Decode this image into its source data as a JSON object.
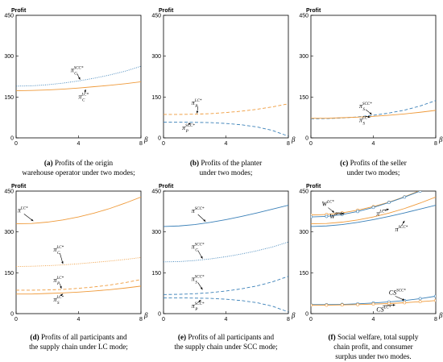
{
  "colors": {
    "blue": "#3a80b8",
    "orange": "#ef9a3a",
    "frame": "#000000"
  },
  "chart_data": [
    {
      "type": "line",
      "caption": {
        "tag": "(a)",
        "lines": [
          "Profits of the origin",
          "warehouse operator under two modes;"
        ]
      },
      "ylabel": "Profit",
      "xlabel": "β",
      "xlim": [
        0,
        8
      ],
      "ylim": [
        0,
        450
      ],
      "xticks": [
        "0",
        "4",
        "8"
      ],
      "yticks": [
        "0",
        "150",
        "300",
        "450"
      ],
      "series": [
        {
          "style": "dotted",
          "color": "blue",
          "x": [
            0,
            1,
            2,
            3,
            4,
            5,
            6,
            7,
            8
          ],
          "y": [
            190,
            191,
            195,
            201,
            209,
            219,
            231,
            245,
            263
          ]
        },
        {
          "style": "solid",
          "color": "orange",
          "x": [
            0,
            1,
            2,
            3,
            4,
            5,
            6,
            7,
            8
          ],
          "y": [
            173,
            174,
            176,
            179,
            183,
            188,
            193,
            199,
            206
          ]
        }
      ],
      "annotations": [
        {
          "base": "π",
          "sub": "C",
          "sup": "SCC*",
          "ax": 3.7,
          "ay": 242,
          "tx": 4.1,
          "ty": 214
        },
        {
          "base": "π",
          "sub": "C",
          "sup": "LC*",
          "ax": 4.2,
          "ay": 144,
          "tx": 4.45,
          "ty": 178
        }
      ]
    },
    {
      "type": "line",
      "caption": {
        "tag": "(b)",
        "lines": [
          "Profits of the planter",
          "under two modes;"
        ]
      },
      "ylabel": "Profit",
      "xlabel": "β",
      "xlim": [
        0,
        8
      ],
      "ylim": [
        0,
        450
      ],
      "xticks": [
        "0",
        "4",
        "8"
      ],
      "yticks": [
        "0",
        "150",
        "300",
        "450"
      ],
      "series": [
        {
          "style": "dashed",
          "color": "orange",
          "x": [
            0,
            1,
            2,
            3,
            4,
            5,
            6,
            7,
            8
          ],
          "y": [
            86,
            86,
            87,
            89,
            93,
            98,
            105,
            114,
            125
          ]
        },
        {
          "style": "dashed",
          "color": "blue",
          "x": [
            0,
            1,
            2,
            3,
            4,
            5,
            6,
            7,
            8
          ],
          "y": [
            58,
            58,
            57,
            56,
            53,
            48,
            40,
            27,
            6
          ]
        }
      ],
      "annotations": [
        {
          "base": "π",
          "sub": "P",
          "sup": "LC*",
          "ax": 2.0,
          "ay": 122,
          "tx": 2.15,
          "ty": 90
        },
        {
          "base": "π",
          "sub": "P",
          "sup": "SCC*",
          "ax": 1.4,
          "ay": 30,
          "tx": 1.75,
          "ty": 53
        }
      ]
    },
    {
      "type": "line",
      "caption": {
        "tag": "(c)",
        "lines": [
          "Profits of the seller",
          "under two modes;"
        ]
      },
      "ylabel": "Profit",
      "xlabel": "β",
      "xlim": [
        0,
        8
      ],
      "ylim": [
        0,
        450
      ],
      "xticks": [
        "0",
        "4",
        "8"
      ],
      "yticks": [
        "0",
        "150",
        "300",
        "450"
      ],
      "series": [
        {
          "style": "dashed",
          "color": "blue",
          "x": [
            0,
            1,
            2,
            3,
            4,
            5,
            6,
            7,
            8
          ],
          "y": [
            70,
            71,
            73,
            77,
            83,
            91,
            102,
            117,
            137
          ]
        },
        {
          "style": "solid",
          "color": "orange",
          "x": [
            0,
            1,
            2,
            3,
            4,
            5,
            6,
            7,
            8
          ],
          "y": [
            72,
            72,
            74,
            76,
            79,
            83,
            88,
            94,
            101
          ]
        }
      ],
      "annotations": [
        {
          "base": "π",
          "sub": "S",
          "sup": "SCC*",
          "ax": 3.3,
          "ay": 110,
          "tx": 3.9,
          "ty": 86
        },
        {
          "base": "π",
          "sub": "S",
          "sup": "LC*",
          "ax": 3.3,
          "ay": 58,
          "tx": 3.8,
          "ty": 76
        }
      ]
    },
    {
      "type": "line",
      "caption": {
        "tag": "(d)",
        "lines": [
          "Profits of all participants and",
          "the supply chain under LC mode;"
        ]
      },
      "ylabel": "Profit",
      "xlabel": "β",
      "xlim": [
        0,
        8
      ],
      "ylim": [
        0,
        450
      ],
      "xticks": [
        "0",
        "4",
        "8"
      ],
      "yticks": [
        "0",
        "150",
        "300",
        "450"
      ],
      "series": [
        {
          "style": "solid",
          "color": "orange",
          "x": [
            0,
            1,
            2,
            3,
            4,
            5,
            6,
            7,
            8
          ],
          "y": [
            330,
            331,
            336,
            344,
            355,
            369,
            386,
            406,
            428
          ]
        },
        {
          "style": "dotted",
          "color": "orange",
          "x": [
            0,
            1,
            2,
            3,
            4,
            5,
            6,
            7,
            8
          ],
          "y": [
            173,
            174,
            176,
            179,
            183,
            188,
            193,
            199,
            206
          ]
        },
        {
          "style": "dashed",
          "color": "orange",
          "x": [
            0,
            1,
            2,
            3,
            4,
            5,
            6,
            7,
            8
          ],
          "y": [
            86,
            86,
            87,
            89,
            93,
            98,
            105,
            114,
            125
          ]
        },
        {
          "style": "solid",
          "color": "orange",
          "x": [
            0,
            1,
            2,
            3,
            4,
            5,
            6,
            7,
            8
          ],
          "y": [
            72,
            72,
            74,
            76,
            79,
            83,
            88,
            94,
            101
          ]
        }
      ],
      "annotations": [
        {
          "base": "π",
          "sub": "",
          "sup": "LC*",
          "ax": 0.3,
          "ay": 372,
          "tx": 1.1,
          "ty": 340
        },
        {
          "base": "π",
          "sub": "C",
          "sup": "LC*",
          "ax": 2.6,
          "ay": 228,
          "tx": 3.0,
          "ty": 183
        },
        {
          "base": "π",
          "sub": "P",
          "sup": "LC*",
          "ax": 2.6,
          "ay": 116,
          "tx": 2.9,
          "ty": 92
        },
        {
          "base": "π",
          "sub": "S",
          "sup": "LC*",
          "ax": 2.6,
          "ay": 44,
          "tx": 3.0,
          "ty": 72
        }
      ]
    },
    {
      "type": "line",
      "caption": {
        "tag": "(e)",
        "lines": [
          "Profits of all participants and",
          "the supply chain under SCC mode;"
        ]
      },
      "ylabel": "Profit",
      "xlabel": "β",
      "xlim": [
        0,
        8
      ],
      "ylim": [
        0,
        450
      ],
      "xticks": [
        "0",
        "4",
        "8"
      ],
      "yticks": [
        "0",
        "150",
        "300",
        "450"
      ],
      "series": [
        {
          "style": "solid",
          "color": "blue",
          "x": [
            0,
            1,
            2,
            3,
            4,
            5,
            6,
            7,
            8
          ],
          "y": [
            320,
            322,
            327,
            335,
            345,
            357,
            370,
            384,
            398
          ]
        },
        {
          "style": "dotted",
          "color": "blue",
          "x": [
            0,
            1,
            2,
            3,
            4,
            5,
            6,
            7,
            8
          ],
          "y": [
            190,
            191,
            195,
            201,
            209,
            219,
            231,
            245,
            263
          ]
        },
        {
          "style": "dashed",
          "color": "blue",
          "x": [
            0,
            1,
            2,
            3,
            4,
            5,
            6,
            7,
            8
          ],
          "y": [
            70,
            71,
            73,
            77,
            83,
            91,
            102,
            117,
            137
          ]
        },
        {
          "style": "dashed",
          "color": "blue",
          "x": [
            0,
            1,
            2,
            3,
            4,
            5,
            6,
            7,
            8
          ],
          "y": [
            58,
            58,
            57,
            56,
            53,
            48,
            40,
            27,
            6
          ]
        }
      ],
      "annotations": [
        {
          "base": "π",
          "sub": "",
          "sup": "SCC*",
          "ax": 2.0,
          "ay": 370,
          "tx": 2.7,
          "ty": 338
        },
        {
          "base": "π",
          "sub": "C",
          "sup": "SCC*",
          "ax": 2.0,
          "ay": 238,
          "tx": 2.5,
          "ty": 202
        },
        {
          "base": "π",
          "sub": "S",
          "sup": "SCC*",
          "ax": 2.0,
          "ay": 120,
          "tx": 2.5,
          "ty": 88
        },
        {
          "base": "π",
          "sub": "P",
          "sup": "SCC*",
          "ax": 2.0,
          "ay": 20,
          "tx": 2.4,
          "ty": 50
        }
      ]
    },
    {
      "type": "line",
      "caption": {
        "tag": "(f)",
        "lines": [
          "Social welfare, total supply",
          "chain profit, and consumer",
          "surplus under two modes."
        ]
      },
      "ylabel": "Profit",
      "xlabel": "β",
      "xlim": [
        0,
        8
      ],
      "ylim": [
        0,
        450
      ],
      "xticks": [
        "0",
        "4",
        "8"
      ],
      "yticks": [
        "0",
        "150",
        "300",
        "450"
      ],
      "series": [
        {
          "style": "solid-marker",
          "color": "orange",
          "x": [
            0,
            1,
            2,
            3,
            4,
            5,
            6,
            7,
            8
          ],
          "y": [
            362,
            364,
            370,
            380,
            393,
            409,
            429,
            452,
            478
          ]
        },
        {
          "style": "solid-marker",
          "color": "blue",
          "x": [
            0,
            1,
            2,
            3,
            4,
            5,
            6,
            7,
            8
          ],
          "y": [
            355,
            357,
            364,
            375,
            390,
            408,
            428,
            450,
            475
          ]
        },
        {
          "style": "solid",
          "color": "orange",
          "x": [
            0,
            1,
            2,
            3,
            4,
            5,
            6,
            7,
            8
          ],
          "y": [
            330,
            331,
            336,
            344,
            355,
            369,
            386,
            406,
            428
          ]
        },
        {
          "style": "solid",
          "color": "blue",
          "x": [
            0,
            1,
            2,
            3,
            4,
            5,
            6,
            7,
            8
          ],
          "y": [
            320,
            322,
            327,
            335,
            345,
            357,
            370,
            384,
            398
          ]
        },
        {
          "style": "solid-marker",
          "color": "blue",
          "x": [
            0,
            1,
            2,
            3,
            4,
            5,
            6,
            7,
            8
          ],
          "y": [
            33,
            33,
            34,
            36,
            39,
            43,
            48,
            55,
            64
          ]
        },
        {
          "style": "solid-marker",
          "color": "orange",
          "x": [
            0,
            1,
            2,
            3,
            4,
            5,
            6,
            7,
            8
          ],
          "y": [
            31,
            31,
            32,
            33,
            35,
            37,
            40,
            44,
            48
          ]
        }
      ],
      "annotations": [
        {
          "base": "W",
          "sub": "",
          "sup": "LC*",
          "ax": 0.9,
          "ay": 395,
          "tx": 1.5,
          "ty": 371
        },
        {
          "base": "W",
          "sub": "",
          "sup": "SCC*",
          "ax": 1.4,
          "ay": 350,
          "tx": 2.1,
          "ty": 366
        },
        {
          "base": "π",
          "sub": "",
          "sup": "LC*",
          "ax": 4.4,
          "ay": 360,
          "tx": 5.0,
          "ty": 383
        },
        {
          "base": "π",
          "sub": "",
          "sup": "SCC*",
          "ax": 5.6,
          "ay": 302,
          "tx": 6.0,
          "ty": 341
        },
        {
          "base": "CS",
          "sub": "",
          "sup": "SCC*",
          "ax": 5.2,
          "ay": 70,
          "tx": 6.0,
          "ty": 49
        },
        {
          "base": "CS",
          "sub": "",
          "sup": "LC*",
          "ax": 4.4,
          "ay": 8,
          "tx": 5.4,
          "ty": 32
        }
      ]
    }
  ]
}
